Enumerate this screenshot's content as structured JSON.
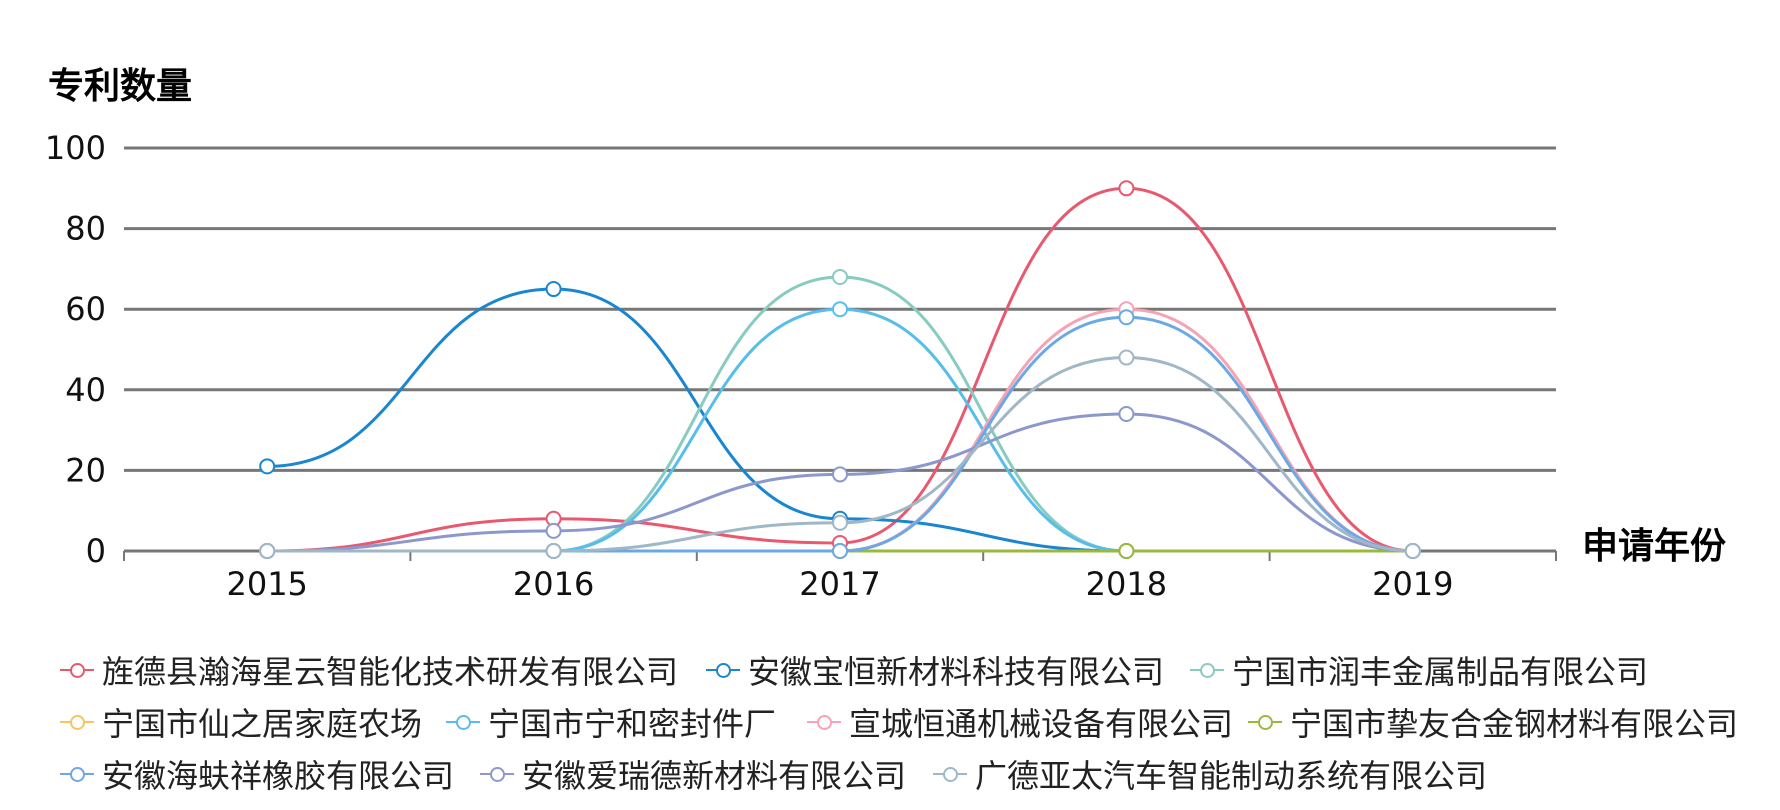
{
  "chart_data": {
    "type": "line",
    "ylabel": "专利数量",
    "xlabel": "申请年份",
    "categories": [
      "2015",
      "2016",
      "2017",
      "2018",
      "2019"
    ],
    "ylim": [
      0,
      100
    ],
    "yticks": [
      0,
      20,
      40,
      60,
      80,
      100
    ],
    "grid": true,
    "smooth": true,
    "legend_position": "bottom",
    "series": [
      {
        "name": "旌德县瀚海星云智能化技术研发有限公司",
        "color": "#e8596f",
        "values": [
          0,
          8,
          2,
          90,
          0
        ]
      },
      {
        "name": "安徽宝恒新材料科技有限公司",
        "color": "#1a86d0",
        "values": [
          21,
          65,
          8,
          0,
          0
        ]
      },
      {
        "name": "宁国市润丰金属制品有限公司",
        "color": "#88cbc0",
        "values": [
          0,
          0,
          68,
          0,
          0
        ]
      },
      {
        "name": "宁国市仙之居家庭农场",
        "color": "#f8c45c",
        "values": [
          0,
          0,
          0,
          0,
          0
        ]
      },
      {
        "name": "宁国市宁和密封件厂",
        "color": "#57bdeb",
        "values": [
          0,
          0,
          60,
          0,
          0
        ]
      },
      {
        "name": "宣城恒通机械设备有限公司",
        "color": "#f5a3b5",
        "values": [
          0,
          0,
          0,
          60,
          0
        ]
      },
      {
        "name": "宁国市挚友合金钢材料有限公司",
        "color": "#9ab83a",
        "values": [
          0,
          0,
          0,
          0,
          0
        ]
      },
      {
        "name": "安徽海蚨祥橡胶有限公司",
        "color": "#6aa8e6",
        "values": [
          0,
          0,
          0,
          58,
          0
        ]
      },
      {
        "name": "安徽爱瑞德新材料有限公司",
        "color": "#8c98cc",
        "values": [
          0,
          5,
          19,
          34,
          0
        ]
      },
      {
        "name": "广德亚太汽车智能制动系统有限公司",
        "color": "#9fb7c7",
        "values": [
          0,
          0,
          7,
          48,
          0
        ]
      }
    ]
  }
}
